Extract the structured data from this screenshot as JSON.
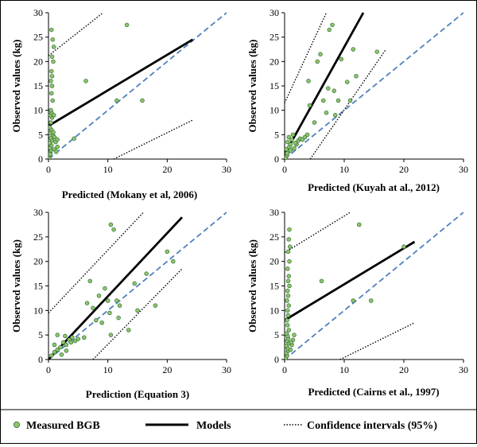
{
  "chart_data": [
    {
      "type": "scatter",
      "xlabel": "Predicted (Mokany et al, 2006)",
      "ylabel": "Observed values (kg)",
      "xlim": [
        0,
        30
      ],
      "ylim": [
        0,
        30
      ],
      "xticks": [
        0,
        10,
        20,
        30
      ],
      "yticks": [
        0,
        5,
        10,
        15,
        20,
        25,
        30
      ],
      "points": [
        [
          0.1,
          0.3
        ],
        [
          0.2,
          0.8
        ],
        [
          0.3,
          1.3
        ],
        [
          0.4,
          1.8
        ],
        [
          0.3,
          2.3
        ],
        [
          0.5,
          2.8
        ],
        [
          0.2,
          3.3
        ],
        [
          0.6,
          3.8
        ],
        [
          0.4,
          4.3
        ],
        [
          0.8,
          4.8
        ],
        [
          0.3,
          5.3
        ],
        [
          0.5,
          6.0
        ],
        [
          0.2,
          6.5
        ],
        [
          0.4,
          7.5
        ],
        [
          0.6,
          8.5
        ],
        [
          0.3,
          9.0
        ],
        [
          0.5,
          9.5
        ],
        [
          0.4,
          10.0
        ],
        [
          0.7,
          12.0
        ],
        [
          0.5,
          13.5
        ],
        [
          0.6,
          15.0
        ],
        [
          0.4,
          16.0
        ],
        [
          0.6,
          17.0
        ],
        [
          0.5,
          18.0
        ],
        [
          0.8,
          20.0
        ],
        [
          0.6,
          21.0
        ],
        [
          0.9,
          23.0
        ],
        [
          0.7,
          24.5
        ],
        [
          0.5,
          26.5
        ],
        [
          0.9,
          9.0
        ],
        [
          0.3,
          1.0
        ],
        [
          1.0,
          2.0
        ],
        [
          1.2,
          3.5
        ],
        [
          1.5,
          4.0
        ],
        [
          1.0,
          4.5
        ],
        [
          0.8,
          5.5
        ],
        [
          1.3,
          1.5
        ],
        [
          1.5,
          2.5
        ],
        [
          4.3,
          4.2
        ],
        [
          6.3,
          16.0
        ],
        [
          11.5,
          12.0
        ],
        [
          13.2,
          27.5
        ],
        [
          15.8,
          12.0
        ]
      ],
      "model_line": [
        [
          0,
          6.8
        ],
        [
          24.3,
          24.5
        ]
      ],
      "confidence_upper": [
        [
          0,
          21.2
        ],
        [
          9.2,
          30
        ]
      ],
      "confidence_lower": [
        [
          11,
          0
        ],
        [
          24.3,
          8.0
        ]
      ],
      "one_to_one": [
        [
          0,
          0
        ],
        [
          30,
          30
        ]
      ]
    },
    {
      "type": "scatter",
      "xlabel": "Predicted (Kuyah at al., 2012)",
      "ylabel": "Observed values (kg)",
      "xlim": [
        0,
        30
      ],
      "ylim": [
        0,
        30
      ],
      "xticks": [
        0,
        10,
        20,
        30
      ],
      "yticks": [
        0,
        5,
        10,
        15,
        20,
        25,
        30
      ],
      "points": [
        [
          0.2,
          0.3
        ],
        [
          0.4,
          0.8
        ],
        [
          0.6,
          1.5
        ],
        [
          0.3,
          2.0
        ],
        [
          0.8,
          2.5
        ],
        [
          1.0,
          3.0
        ],
        [
          0.5,
          3.5
        ],
        [
          1.2,
          4.0
        ],
        [
          0.7,
          4.5
        ],
        [
          1.4,
          5.0
        ],
        [
          0.4,
          1.2
        ],
        [
          1.0,
          1.8
        ],
        [
          1.6,
          2.2
        ],
        [
          2.0,
          3.0
        ],
        [
          2.3,
          3.8
        ],
        [
          2.6,
          4.2
        ],
        [
          3.0,
          4.0
        ],
        [
          3.4,
          4.5
        ],
        [
          3.8,
          5.0
        ],
        [
          1.8,
          3.3
        ],
        [
          4.2,
          11.0
        ],
        [
          4.0,
          16.0
        ],
        [
          5.0,
          7.5
        ],
        [
          5.5,
          20.0
        ],
        [
          6.0,
          21.5
        ],
        [
          6.5,
          12.0
        ],
        [
          7.0,
          9.5
        ],
        [
          7.3,
          14.5
        ],
        [
          7.5,
          26.5
        ],
        [
          8.0,
          27.5
        ],
        [
          8.3,
          14.0
        ],
        [
          8.5,
          9.0
        ],
        [
          9.0,
          12.0
        ],
        [
          9.5,
          20.5
        ],
        [
          10.5,
          15.8
        ],
        [
          11.0,
          12.0
        ],
        [
          11.5,
          22.5
        ],
        [
          12.0,
          17.0
        ],
        [
          15.5,
          22.0
        ]
      ],
      "model_line": [
        [
          0,
          1.0
        ],
        [
          13.2,
          30
        ]
      ],
      "confidence_upper": [
        [
          0,
          11.5
        ],
        [
          7.0,
          30
        ]
      ],
      "confidence_lower": [
        [
          4.3,
          0
        ],
        [
          17.0,
          22.5
        ]
      ],
      "one_to_one": [
        [
          0,
          0
        ],
        [
          30,
          30
        ]
      ]
    },
    {
      "type": "scatter",
      "xlabel": "Prediction (Equation 3)",
      "ylabel": "Observed values (kg)",
      "xlim": [
        0,
        30
      ],
      "ylim": [
        0,
        30
      ],
      "xticks": [
        0,
        10,
        20,
        30
      ],
      "yticks": [
        0,
        5,
        10,
        15,
        20,
        25,
        30
      ],
      "points": [
        [
          0.5,
          0.8
        ],
        [
          1.0,
          1.5
        ],
        [
          1.5,
          2.0
        ],
        [
          1.0,
          3.0
        ],
        [
          2.0,
          2.5
        ],
        [
          2.5,
          3.5
        ],
        [
          3.0,
          3.0
        ],
        [
          3.5,
          4.0
        ],
        [
          4.0,
          4.5
        ],
        [
          1.5,
          5.0
        ],
        [
          2.2,
          1.0
        ],
        [
          3.0,
          1.8
        ],
        [
          4.5,
          3.8
        ],
        [
          5.0,
          4.2
        ],
        [
          2.8,
          4.8
        ],
        [
          3.8,
          3.5
        ],
        [
          6.0,
          4.5
        ],
        [
          6.5,
          11.5
        ],
        [
          7.0,
          16.0
        ],
        [
          7.5,
          10.5
        ],
        [
          8.0,
          8.0
        ],
        [
          8.5,
          13.0
        ],
        [
          9.0,
          7.5
        ],
        [
          9.5,
          14.5
        ],
        [
          10.0,
          12.0
        ],
        [
          10.5,
          5.0
        ],
        [
          10.3,
          9.5
        ],
        [
          10.5,
          27.5
        ],
        [
          11.0,
          26.5
        ],
        [
          11.5,
          12.0
        ],
        [
          11.8,
          8.5
        ],
        [
          12.0,
          11.0
        ],
        [
          13.5,
          6.0
        ],
        [
          14.5,
          15.5
        ],
        [
          15.0,
          10.0
        ],
        [
          16.5,
          17.5
        ],
        [
          18.0,
          11.0
        ],
        [
          20.0,
          22.0
        ],
        [
          21.0,
          20.0
        ]
      ],
      "model_line": [
        [
          0,
          0
        ],
        [
          22.5,
          29.0
        ]
      ],
      "confidence_upper": [
        [
          0,
          9.5
        ],
        [
          16.0,
          30
        ]
      ],
      "confidence_lower": [
        [
          7.5,
          0
        ],
        [
          22.5,
          18.5
        ]
      ],
      "one_to_one": [
        [
          0,
          0
        ],
        [
          30,
          30
        ]
      ]
    },
    {
      "type": "scatter",
      "xlabel": "Predicted (Cairns et al., 1997)",
      "ylabel": "Observed values (kg)",
      "xlim": [
        0,
        30
      ],
      "ylim": [
        0,
        30
      ],
      "xticks": [
        0,
        10,
        20,
        30
      ],
      "yticks": [
        0,
        5,
        10,
        15,
        20,
        25,
        30
      ],
      "points": [
        [
          0.2,
          0.3
        ],
        [
          0.4,
          0.8
        ],
        [
          0.3,
          1.3
        ],
        [
          0.6,
          1.8
        ],
        [
          0.5,
          2.3
        ],
        [
          0.3,
          2.8
        ],
        [
          0.7,
          3.3
        ],
        [
          0.4,
          3.8
        ],
        [
          0.6,
          4.3
        ],
        [
          0.5,
          4.8
        ],
        [
          0.3,
          5.3
        ],
        [
          0.7,
          6.0
        ],
        [
          0.5,
          7.0
        ],
        [
          0.4,
          8.0
        ],
        [
          0.6,
          9.0
        ],
        [
          0.5,
          10.0
        ],
        [
          0.7,
          11.0
        ],
        [
          0.4,
          12.0
        ],
        [
          0.6,
          13.0
        ],
        [
          0.5,
          14.0
        ],
        [
          0.8,
          15.0
        ],
        [
          0.6,
          16.0
        ],
        [
          0.7,
          17.0
        ],
        [
          0.5,
          18.5
        ],
        [
          0.8,
          20.0
        ],
        [
          0.6,
          22.0
        ],
        [
          0.9,
          23.0
        ],
        [
          0.7,
          24.5
        ],
        [
          0.8,
          26.5
        ],
        [
          1.0,
          2.0
        ],
        [
          1.2,
          3.0
        ],
        [
          1.4,
          4.0
        ],
        [
          1.6,
          5.0
        ],
        [
          1.1,
          3.5
        ],
        [
          6.2,
          16.0
        ],
        [
          11.5,
          12.0
        ],
        [
          12.5,
          27.5
        ],
        [
          14.5,
          12.0
        ],
        [
          20.0,
          23.0
        ]
      ],
      "model_line": [
        [
          0,
          8.0
        ],
        [
          21.8,
          24.0
        ]
      ],
      "confidence_upper": [
        [
          0,
          21.8
        ],
        [
          11.0,
          30
        ]
      ],
      "confidence_lower": [
        [
          9.3,
          0
        ],
        [
          21.8,
          7.5
        ]
      ],
      "one_to_one": [
        [
          0,
          0
        ],
        [
          30,
          30
        ]
      ]
    }
  ],
  "legend": {
    "items": [
      {
        "label": "Measured BGB",
        "kind": "marker"
      },
      {
        "label": "Models",
        "kind": "solid-line"
      },
      {
        "label": "Confidence intervals (95%)",
        "kind": "dotted-line"
      }
    ]
  },
  "colors": {
    "point_fill": "#8fc46a",
    "point_stroke": "#2f6e3a",
    "model_line": "#000000",
    "confidence_line": "#000000",
    "one_to_one_line": "#4f81bd"
  }
}
